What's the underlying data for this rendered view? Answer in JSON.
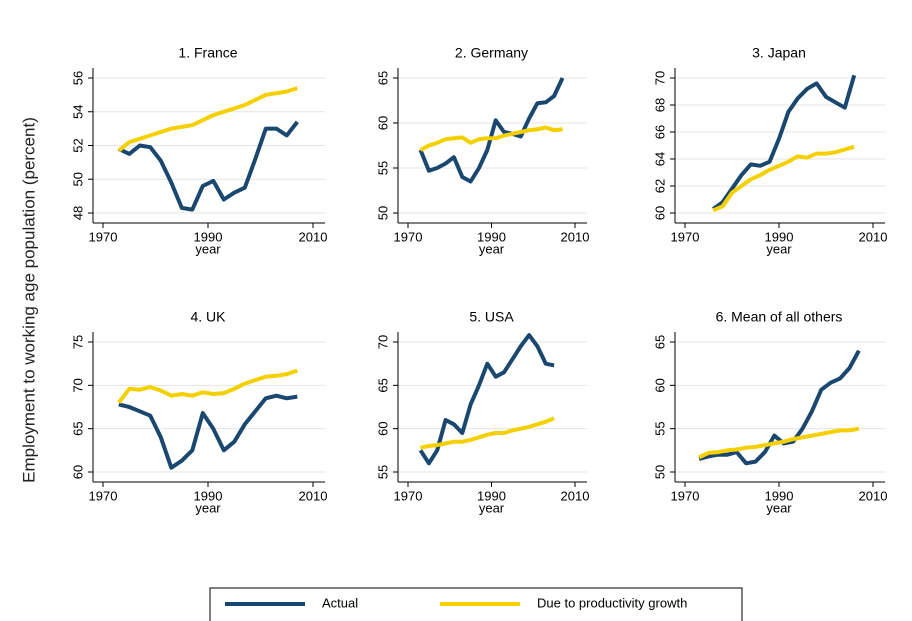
{
  "ylabel": "Employment to working age population (percent)",
  "chart_data": [
    {
      "type": "line",
      "title": "1. France",
      "xlabel": "year",
      "x": [
        1973,
        1975,
        1977,
        1979,
        1981,
        1983,
        1985,
        1987,
        1989,
        1991,
        1993,
        1995,
        1997,
        1999,
        2001,
        2003,
        2005,
        2007
      ],
      "xlim": [
        1970,
        2010
      ],
      "xticks": [
        1970,
        1990,
        2010
      ],
      "ylim": [
        48,
        56
      ],
      "yticks": [
        48,
        50,
        52,
        54,
        56
      ],
      "grid": true,
      "series": [
        {
          "name": "Actual",
          "color": "#1a476f",
          "values": [
            51.8,
            51.5,
            52.0,
            51.9,
            51.1,
            49.8,
            48.3,
            48.2,
            49.6,
            49.9,
            48.8,
            49.2,
            49.5,
            51.2,
            53.0,
            53.0,
            52.6,
            53.4
          ]
        },
        {
          "name": "Due to productivity growth",
          "color": "#f5d000",
          "values": [
            51.7,
            52.2,
            52.4,
            52.6,
            52.8,
            53.0,
            53.1,
            53.2,
            53.5,
            53.8,
            54.0,
            54.2,
            54.4,
            54.7,
            55.0,
            55.1,
            55.2,
            55.4
          ]
        }
      ]
    },
    {
      "type": "line",
      "title": "2. Germany",
      "xlabel": "year",
      "x": [
        1973,
        1975,
        1977,
        1979,
        1981,
        1983,
        1985,
        1987,
        1989,
        1991,
        1993,
        1995,
        1997,
        1999,
        2001,
        2003,
        2005,
        2007
      ],
      "xlim": [
        1970,
        2010
      ],
      "xticks": [
        1970,
        1990,
        2010
      ],
      "ylim": [
        50,
        65
      ],
      "yticks": [
        50,
        55,
        60,
        65
      ],
      "grid": true,
      "series": [
        {
          "name": "Actual",
          "color": "#1a476f",
          "values": [
            57.0,
            54.7,
            55.0,
            55.5,
            56.2,
            54.0,
            53.5,
            55.0,
            57.0,
            60.3,
            59.0,
            58.8,
            58.5,
            60.5,
            62.2,
            62.3,
            63.0,
            65.0
          ]
        },
        {
          "name": "Due to productivity growth",
          "color": "#f5d000",
          "values": [
            57.0,
            57.5,
            57.8,
            58.2,
            58.3,
            58.4,
            57.8,
            58.2,
            58.3,
            58.3,
            58.6,
            58.8,
            59.0,
            59.2,
            59.3,
            59.5,
            59.2,
            59.3
          ]
        }
      ]
    },
    {
      "type": "line",
      "title": "3. Japan",
      "xlabel": "year",
      "x": [
        1976,
        1978,
        1980,
        1982,
        1984,
        1986,
        1988,
        1990,
        1992,
        1994,
        1996,
        1998,
        2000,
        2002,
        2004,
        2006
      ],
      "xlim": [
        1970,
        2010
      ],
      "xticks": [
        1970,
        1990,
        2010
      ],
      "ylim": [
        60,
        70
      ],
      "yticks": [
        60,
        62,
        64,
        66,
        68,
        70
      ],
      "grid": true,
      "series": [
        {
          "name": "Actual",
          "color": "#1a476f",
          "values": [
            60.3,
            60.8,
            61.8,
            62.8,
            63.6,
            63.5,
            63.8,
            65.5,
            67.5,
            68.5,
            69.2,
            69.6,
            68.6,
            68.2,
            67.8,
            70.2
          ]
        },
        {
          "name": "Due to productivity growth",
          "color": "#f5d000",
          "values": [
            60.2,
            60.5,
            61.5,
            62.0,
            62.5,
            62.8,
            63.2,
            63.5,
            63.8,
            64.2,
            64.1,
            64.4,
            64.4,
            64.5,
            64.7,
            64.9
          ]
        }
      ]
    },
    {
      "type": "line",
      "title": "4. UK",
      "xlabel": "year",
      "x": [
        1973,
        1975,
        1977,
        1979,
        1981,
        1983,
        1985,
        1987,
        1989,
        1991,
        1993,
        1995,
        1997,
        1999,
        2001,
        2003,
        2005,
        2007
      ],
      "xlim": [
        1970,
        2010
      ],
      "xticks": [
        1970,
        1990,
        2010
      ],
      "ylim": [
        60,
        75
      ],
      "yticks": [
        60,
        65,
        70,
        75
      ],
      "grid": true,
      "series": [
        {
          "name": "Actual",
          "color": "#1a476f",
          "values": [
            67.8,
            67.5,
            67.0,
            66.5,
            64.0,
            60.5,
            61.3,
            62.5,
            66.8,
            65.0,
            62.5,
            63.5,
            65.5,
            67.0,
            68.5,
            68.8,
            68.5,
            68.7
          ]
        },
        {
          "name": "Due to productivity growth",
          "color": "#f5d000",
          "values": [
            68.0,
            69.6,
            69.5,
            69.8,
            69.4,
            68.8,
            69.0,
            68.8,
            69.2,
            69.0,
            69.1,
            69.6,
            70.2,
            70.6,
            71.0,
            71.1,
            71.3,
            71.7
          ]
        }
      ]
    },
    {
      "type": "line",
      "title": "5. USA",
      "xlabel": "year",
      "x": [
        1973,
        1975,
        1977,
        1979,
        1981,
        1983,
        1985,
        1987,
        1989,
        1991,
        1993,
        1995,
        1997,
        1999,
        2001,
        2003,
        2005
      ],
      "xlim": [
        1970,
        2010
      ],
      "xticks": [
        1970,
        1990,
        2010
      ],
      "ylim": [
        55,
        70
      ],
      "yticks": [
        55,
        60,
        65,
        70
      ],
      "grid": true,
      "series": [
        {
          "name": "Actual",
          "color": "#1a476f",
          "values": [
            57.5,
            56.0,
            57.5,
            61.0,
            60.5,
            59.5,
            62.8,
            65.0,
            67.5,
            66.0,
            66.5,
            68.0,
            69.5,
            70.8,
            69.5,
            67.5,
            67.3
          ]
        },
        {
          "name": "Due to productivity growth",
          "color": "#f5d000",
          "values": [
            57.8,
            58.0,
            58.1,
            58.3,
            58.5,
            58.5,
            58.7,
            59.0,
            59.3,
            59.5,
            59.5,
            59.8,
            60.0,
            60.2,
            60.5,
            60.8,
            61.2
          ]
        }
      ]
    },
    {
      "type": "line",
      "title": "6. Mean of all others",
      "xlabel": "year",
      "x": [
        1973,
        1975,
        1977,
        1979,
        1981,
        1983,
        1985,
        1987,
        1989,
        1991,
        1993,
        1995,
        1997,
        1999,
        2001,
        2003,
        2005,
        2007
      ],
      "xlim": [
        1970,
        2010
      ],
      "xticks": [
        1970,
        1990,
        2010
      ],
      "ylim": [
        50,
        65
      ],
      "yticks": [
        50,
        55,
        60,
        65
      ],
      "grid": true,
      "series": [
        {
          "name": "Actual",
          "color": "#1a476f",
          "values": [
            51.5,
            51.8,
            52.0,
            52.0,
            52.3,
            51.0,
            51.2,
            52.3,
            54.2,
            53.3,
            53.5,
            55.0,
            57.0,
            59.5,
            60.3,
            60.8,
            62.0,
            64.0
          ]
        },
        {
          "name": "Due to productivity growth",
          "color": "#f5d000",
          "values": [
            51.7,
            52.2,
            52.3,
            52.5,
            52.6,
            52.8,
            52.9,
            53.1,
            53.3,
            53.5,
            53.8,
            54.0,
            54.2,
            54.4,
            54.6,
            54.8,
            54.8,
            55.0
          ]
        }
      ]
    }
  ]
}
